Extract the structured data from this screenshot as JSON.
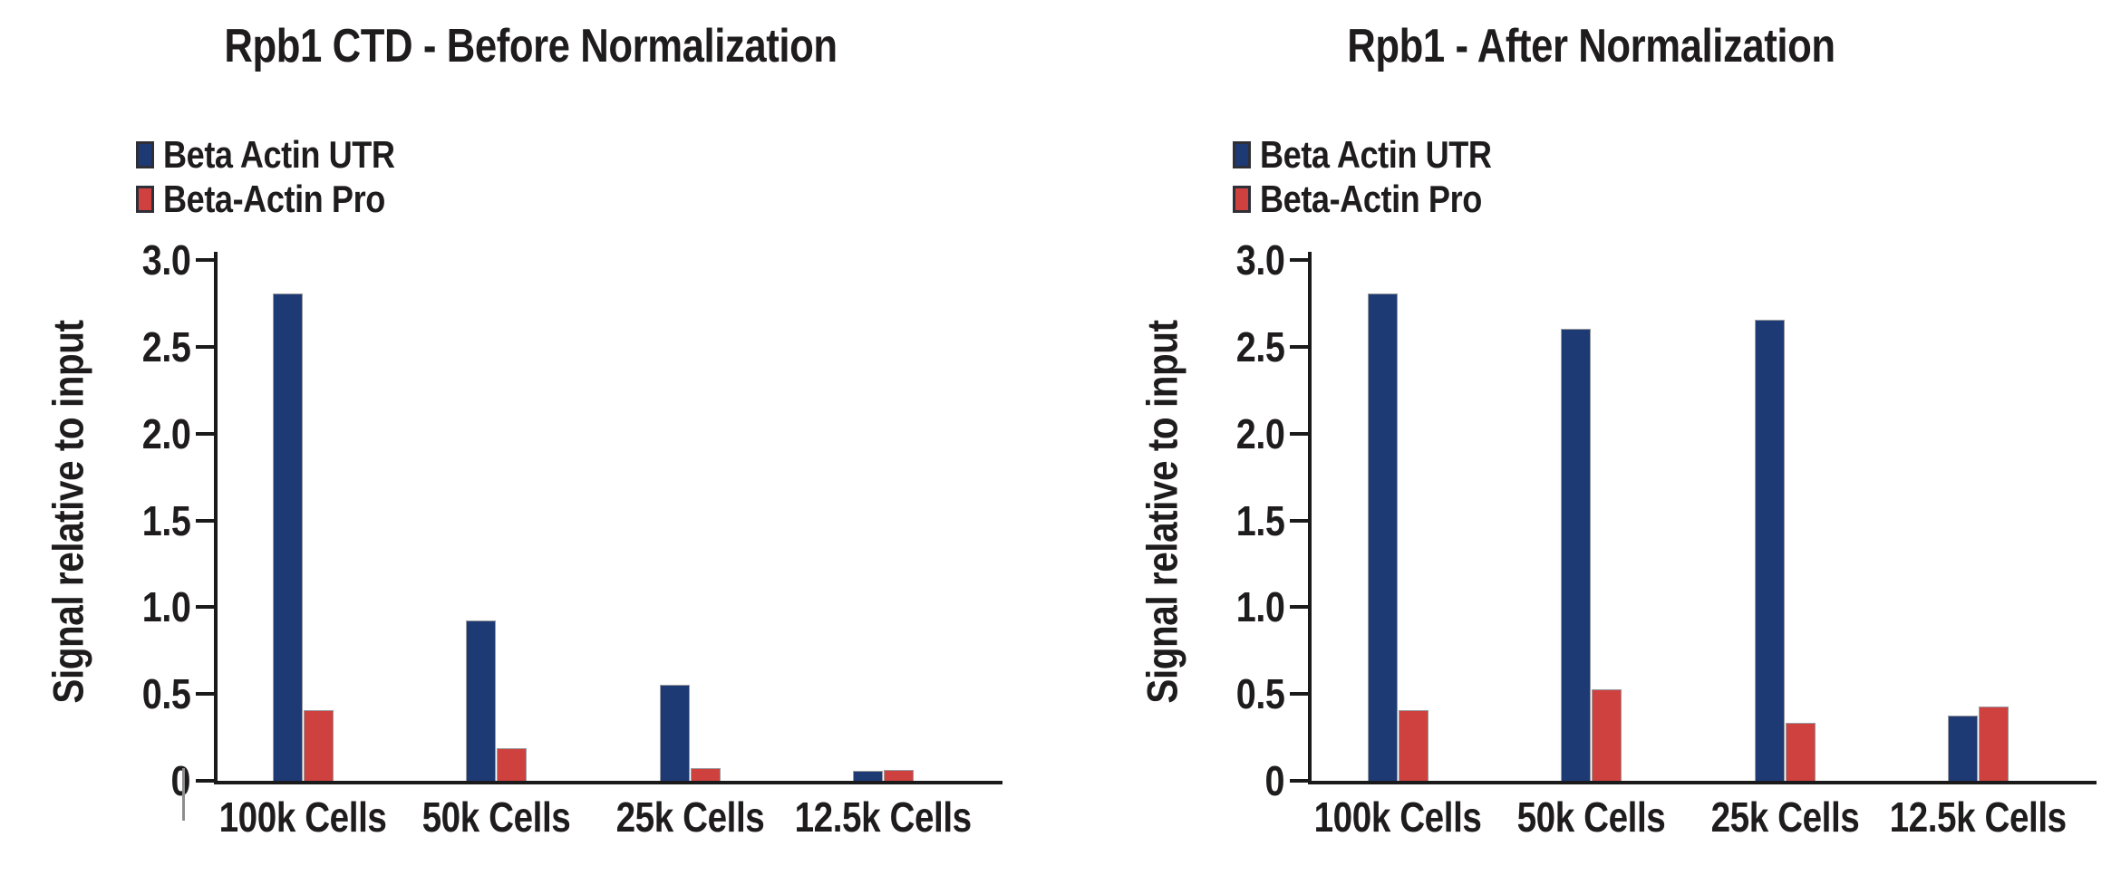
{
  "figure": {
    "background": "#ffffff",
    "text_color": "#1e1c1d",
    "axis_color": "#1a1a1a"
  },
  "colors": {
    "beta_actin_utr": "#1d3a74",
    "beta_actin_pro": "#ce413e",
    "swatch_border": "#2f2f38"
  },
  "chart_data": [
    {
      "type": "bar",
      "title": "Rpb1 CTD - Before Normalization",
      "categories": [
        "100k Cells",
        "50k Cells",
        "25k Cells",
        "12.5k Cells"
      ],
      "series": [
        {
          "name": "Beta Actin UTR",
          "color": "#1d3a74",
          "values": [
            2.8,
            0.92,
            0.55,
            0.05
          ]
        },
        {
          "name": "Beta-Actin Pro",
          "color": "#ce413e",
          "values": [
            0.4,
            0.18,
            0.07,
            0.06
          ]
        }
      ],
      "xlabel": "",
      "ylabel": "Signal relative to input",
      "ylim": [
        0,
        3.0
      ],
      "yticks": [
        "0",
        "0.5",
        "1.0",
        "1.5",
        "2.0",
        "2.5",
        "3.0"
      ],
      "grid": false,
      "legend_position": "top-left"
    },
    {
      "type": "bar",
      "title": "Rpb1 - After Normalization",
      "categories": [
        "100k Cells",
        "50k Cells",
        "25k Cells",
        "12.5k Cells"
      ],
      "series": [
        {
          "name": "Beta Actin UTR",
          "color": "#1d3a74",
          "values": [
            2.8,
            2.6,
            2.65,
            0.37
          ]
        },
        {
          "name": "Beta-Actin Pro",
          "color": "#ce413e",
          "values": [
            0.4,
            0.52,
            0.33,
            0.42
          ]
        }
      ],
      "xlabel": "",
      "ylabel": "Signal relative to input",
      "ylim": [
        0,
        3.0
      ],
      "yticks": [
        "0",
        "0.5",
        "1.0",
        "1.5",
        "2.0",
        "2.5",
        "3.0"
      ],
      "grid": false,
      "legend_position": "top-left"
    }
  ]
}
